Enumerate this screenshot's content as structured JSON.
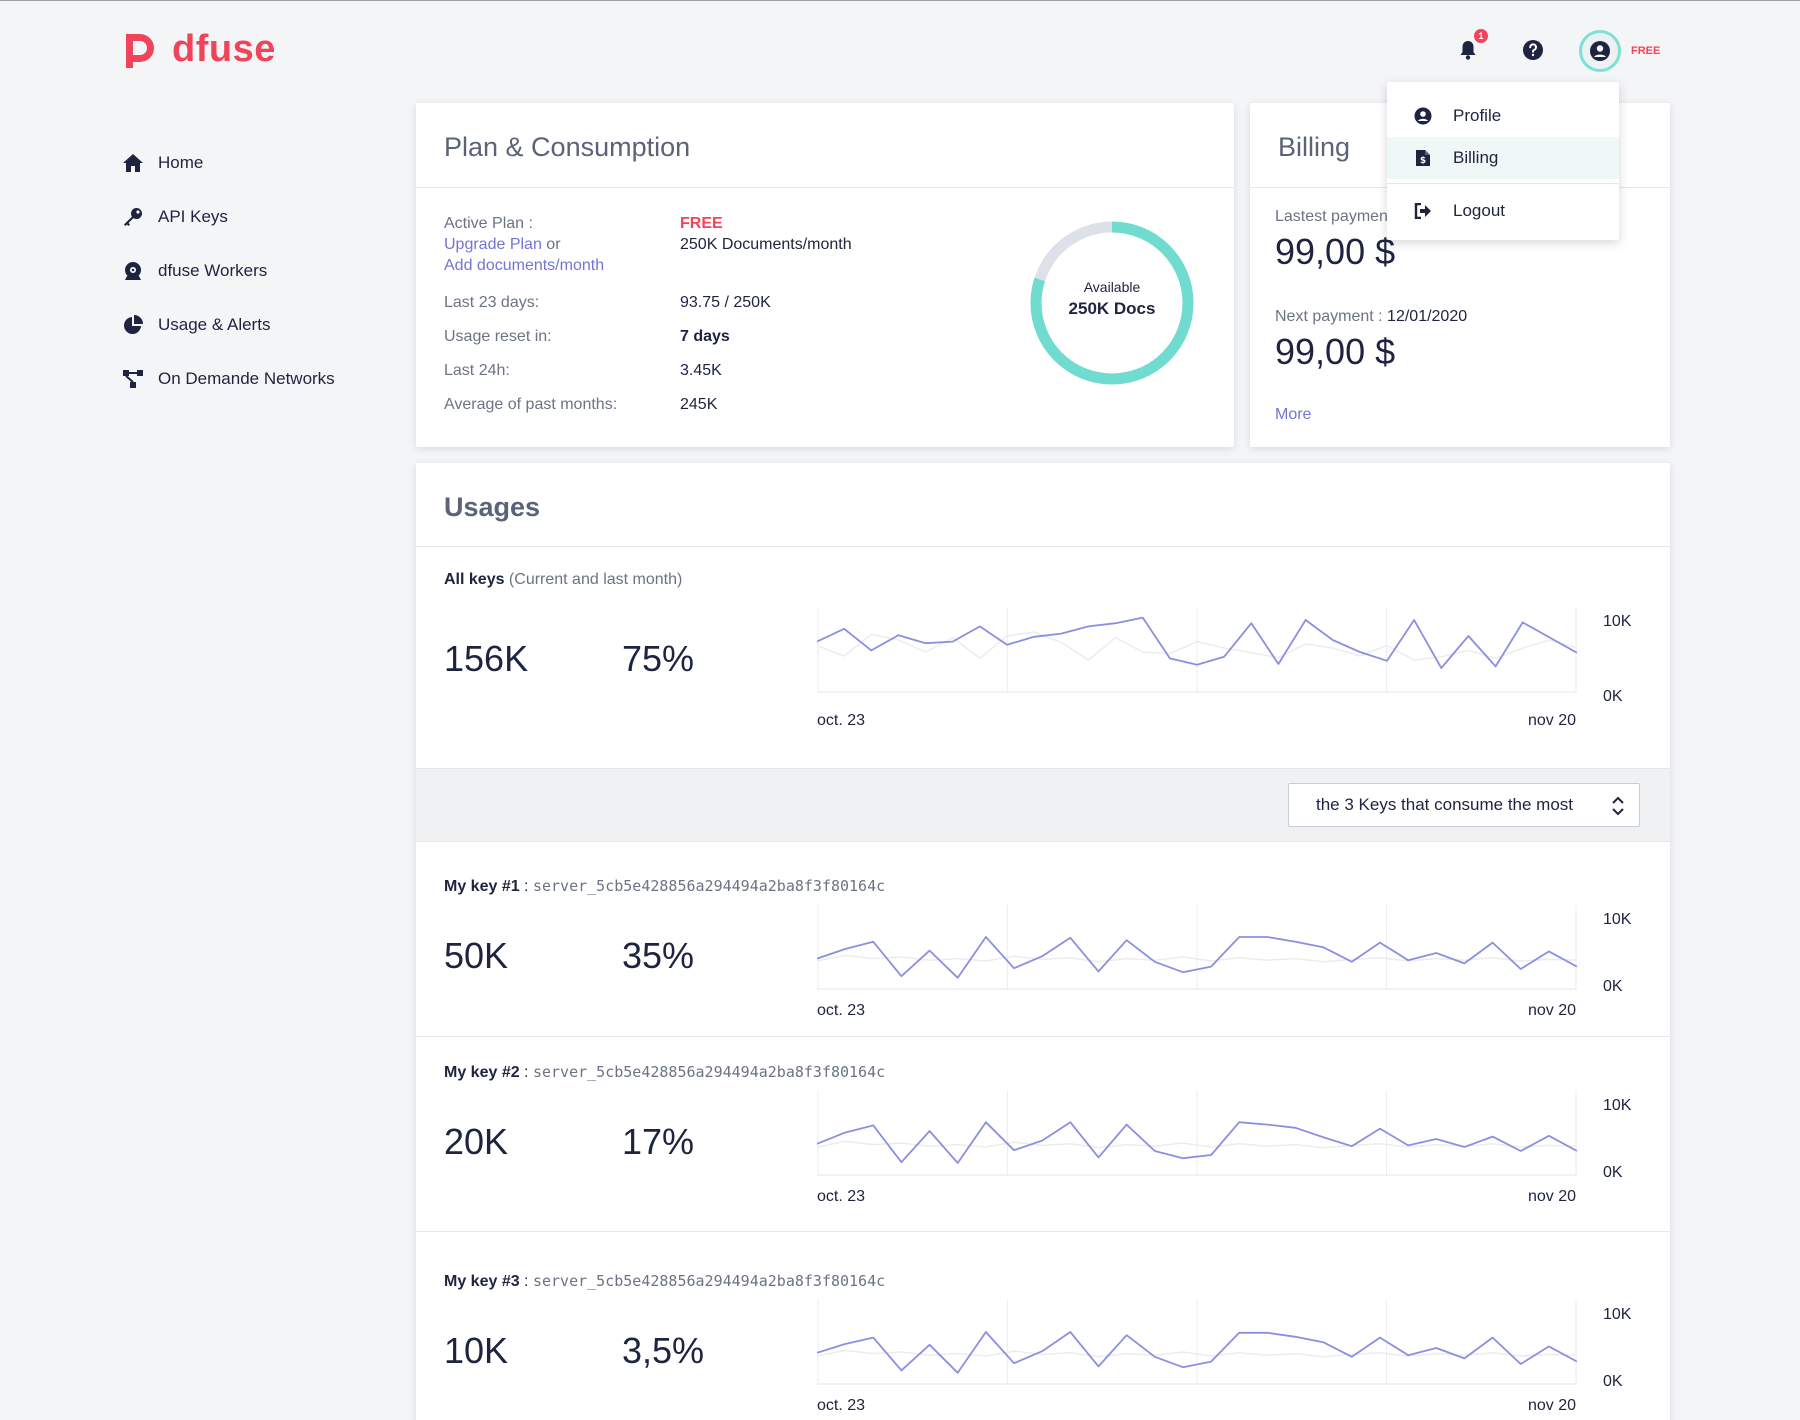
{
  "brand": {
    "name": "dfuse",
    "color": "#f0445b"
  },
  "header": {
    "notification_count": "1",
    "plan_badge": "FREE",
    "icons": [
      "bell-icon",
      "help-icon",
      "user-icon"
    ]
  },
  "user_menu": {
    "items": [
      {
        "label": "Profile",
        "icon": "user-circle-icon"
      },
      {
        "label": "Billing",
        "icon": "invoice-icon",
        "active": true
      },
      {
        "label": "Logout",
        "icon": "logout-icon"
      }
    ]
  },
  "sidebar": {
    "items": [
      {
        "label": "Home",
        "icon": "home-icon"
      },
      {
        "label": "API Keys",
        "icon": "key-icon"
      },
      {
        "label": "dfuse Workers",
        "icon": "worker-icon"
      },
      {
        "label": "Usage & Alerts",
        "icon": "pie-chart-icon"
      },
      {
        "label": "On Demande Networks",
        "icon": "network-icon"
      }
    ]
  },
  "plan": {
    "title": "Plan & Consumption",
    "active_plan_label": "Active Plan :",
    "active_plan_value": "FREE",
    "upgrade_link": "Upgrade Plan",
    "or_text": " or",
    "add_docs_link": "Add documents/month",
    "plan_docs": "250K Documents/month",
    "rows": [
      {
        "label": "Last 23 days:",
        "value": "93.75 / 250K"
      },
      {
        "label": "Usage reset in:",
        "value": "7 days"
      },
      {
        "label": "Last 24h:",
        "value": "3.45K"
      },
      {
        "label": "Average of past months:",
        "value": "245K"
      }
    ],
    "donut": {
      "label": "Available",
      "value": "250K Docs",
      "fraction": 0.8,
      "color": "#6fdccf",
      "track_color": "#dde2ea"
    }
  },
  "billing": {
    "title": "Billing",
    "last_payment_label": "Lastest paymen",
    "last_payment_amount": "99,00 $",
    "next_payment_label": "Next payment : ",
    "next_payment_date": "12/01/2020",
    "next_payment_amount": "99,00 $",
    "more_link": "More"
  },
  "usages": {
    "title": "Usages",
    "all_keys": {
      "label": "All keys",
      "sublabel": " (Current and last month)",
      "total": "156K",
      "percent": "75%"
    },
    "filter_select": "the 3 Keys that consume the most",
    "keys": [
      {
        "label": "My key #1",
        "sep": " : ",
        "id": "server_5cb5e428856a294494a2ba8f3f80164c",
        "total": "50K",
        "percent": "35%"
      },
      {
        "label": "My key #2",
        "sep": " : ",
        "id": "server_5cb5e428856a294494a2ba8f3f80164c",
        "total": "20K",
        "percent": "17%"
      },
      {
        "label": "My key #3",
        "sep": " : ",
        "id": "server_5cb5e428856a294494a2ba8f3f80164c",
        "total": "10K",
        "percent": "3,5%"
      }
    ]
  },
  "chart_data": [
    {
      "type": "line",
      "x_labels": [
        "oct. 23",
        "nov 20"
      ],
      "y_labels": [
        "10K",
        "0K"
      ],
      "ylim": [
        0,
        10
      ],
      "series": [
        {
          "values": [
            6.3,
            7.9,
            5.2,
            7.1,
            6.1,
            6.3,
            8.2,
            5.9,
            6.9,
            7.3,
            8.2,
            8.6,
            9.3,
            4.2,
            3.4,
            4.4,
            8.6,
            3.5,
            9.0,
            6.5,
            5.0,
            3.9,
            9.0,
            3.0,
            7.0,
            3.2,
            8.7,
            6.8,
            4.9
          ],
          "color": "#8b8fe0"
        },
        {
          "values": [
            5.8,
            4.5,
            7.2,
            6.5,
            5.0,
            6.8,
            4.2,
            7.0,
            7.5,
            6.2,
            4.0,
            6.8,
            5.0,
            4.8,
            6.3,
            5.5,
            4.9,
            4.3,
            6.0,
            5.5,
            4.5,
            5.8,
            4.0,
            4.4,
            5.2,
            4.2,
            5.5,
            6.5,
            5.5
          ],
          "color": "#ececec"
        }
      ]
    },
    {
      "type": "line",
      "x_labels": [
        "oct. 23",
        "nov 20"
      ],
      "y_labels": [
        "10K",
        "0K"
      ],
      "ylim": [
        0,
        10
      ],
      "series": [
        {
          "values": [
            3.8,
            5.0,
            5.9,
            1.6,
            4.8,
            1.4,
            6.5,
            2.6,
            4.1,
            6.4,
            2.2,
            6.1,
            3.4,
            2.1,
            2.8,
            6.5,
            6.5,
            5.9,
            5.2,
            3.4,
            5.8,
            3.6,
            4.5,
            3.2,
            5.8,
            2.5,
            4.7,
            2.8
          ],
          "color": "#8b8fe0"
        },
        {
          "values": [
            3.5,
            4.2,
            3.8,
            4.0,
            3.6,
            3.8,
            3.5,
            4.1,
            3.7,
            3.9,
            3.4,
            3.8,
            3.6,
            4.0,
            3.5,
            3.9,
            3.6,
            3.8,
            3.4,
            3.7,
            3.9,
            3.5,
            3.8,
            3.6,
            3.9,
            3.5,
            3.7,
            3.6
          ],
          "color": "#ececec"
        }
      ]
    },
    {
      "type": "line",
      "x_labels": [
        "oct. 23",
        "nov 20"
      ],
      "y_labels": [
        "10K",
        "0K"
      ],
      "ylim": [
        0,
        10
      ],
      "series": [
        {
          "values": [
            3.9,
            5.3,
            6.2,
            1.6,
            5.5,
            1.5,
            6.6,
            3.1,
            4.3,
            6.6,
            2.2,
            6.3,
            3.0,
            2.1,
            2.5,
            6.6,
            6.3,
            5.9,
            4.7,
            3.6,
            5.8,
            3.7,
            4.5,
            3.5,
            4.8,
            3.0,
            4.9,
            3.0
          ],
          "color": "#8b8fe0"
        },
        {
          "values": [
            3.5,
            4.2,
            3.8,
            4.0,
            3.6,
            3.8,
            3.5,
            4.1,
            3.7,
            3.9,
            3.4,
            3.8,
            3.6,
            4.0,
            3.5,
            3.9,
            3.6,
            3.8,
            3.4,
            3.7,
            3.9,
            3.5,
            3.8,
            3.6,
            3.9,
            3.5,
            3.7,
            3.6
          ],
          "color": "#ececec"
        }
      ]
    },
    {
      "type": "line",
      "x_labels": [
        "oct. 23",
        "nov 20"
      ],
      "y_labels": [
        "10K",
        "0K"
      ],
      "ylim": [
        0,
        10
      ],
      "series": [
        {
          "values": [
            3.9,
            5.0,
            5.8,
            1.7,
            4.9,
            1.4,
            6.5,
            2.6,
            4.1,
            6.5,
            2.2,
            6.1,
            3.4,
            2.1,
            2.8,
            6.4,
            6.4,
            5.9,
            5.2,
            3.4,
            5.8,
            3.6,
            4.5,
            3.2,
            5.8,
            2.5,
            4.7,
            2.8
          ],
          "color": "#8b8fe0"
        },
        {
          "values": [
            3.5,
            4.2,
            3.8,
            4.0,
            3.6,
            3.8,
            3.5,
            4.1,
            3.7,
            3.9,
            3.4,
            3.8,
            3.6,
            4.0,
            3.5,
            3.9,
            3.6,
            3.8,
            3.4,
            3.7,
            3.9,
            3.5,
            3.8,
            3.6,
            3.9,
            3.5,
            3.7,
            3.6
          ],
          "color": "#ececec"
        }
      ]
    }
  ]
}
